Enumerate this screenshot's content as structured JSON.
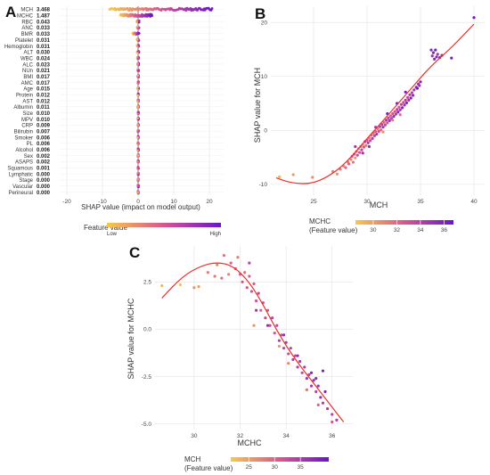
{
  "colors": {
    "low": "#f6c94a",
    "mid": "#d9568f",
    "high": "#6a16c8",
    "grid": "#e3e3e3",
    "fit_line": "#e8312f",
    "axis_text": "#333333"
  },
  "chart_data": [
    {
      "panel": "A",
      "type": "scatter",
      "subtype": "shap-beeswarm",
      "xlabel": "SHAP value (impact on model output)",
      "xlim": [
        -22,
        24
      ],
      "xticks": [
        -20,
        -10,
        0,
        10,
        20
      ],
      "grid": true,
      "features": [
        "MCH",
        "MCHC",
        "RBC",
        "ANC",
        "BMR",
        "Platelet",
        "Hemoglobin",
        "ALT",
        "WBC",
        "ALC",
        "NUn",
        "BMI",
        "AMC",
        "Age",
        "Protein",
        "AST",
        "Albumin",
        "Size",
        "MPV",
        "CRP",
        "Bilirubin",
        "Smoker",
        "PL",
        "Alcohol",
        "Sex",
        "ASAPS",
        "Squamous",
        "Lymphatic",
        "Stage",
        "Vascular",
        "Perineural"
      ],
      "mean_abs_shap": [
        "3.468",
        "1.487",
        "0.043",
        "0.033",
        "0.033",
        "0.031",
        "0.031",
        "0.030",
        "0.024",
        "0.023",
        "0.021",
        "0.017",
        "0.017",
        "0.015",
        "0.012",
        "0.012",
        "0.011",
        "0.010",
        "0.010",
        "0.009",
        "0.007",
        "0.006",
        "0.006",
        "0.006",
        "0.002",
        "0.002",
        "0.001",
        "0.000",
        "0.000",
        "0.000",
        "0.000"
      ],
      "spread": [
        {
          "feature": "MCH",
          "min": -8,
          "max": 21
        },
        {
          "feature": "MCHC",
          "min": -5,
          "max": 4
        },
        {
          "feature": "BMR",
          "min": -1.5,
          "max": 0.4
        }
      ],
      "legend": {
        "title": "Feature value",
        "low_label": "Low",
        "high_label": "High"
      }
    },
    {
      "panel": "B",
      "type": "scatter",
      "xlabel": "MCH",
      "ylabel": "SHAP value for MCH",
      "xlim": [
        21,
        41
      ],
      "ylim": [
        -12,
        23
      ],
      "xticks": [
        25,
        30,
        35,
        40
      ],
      "yticks": [
        -10,
        0,
        10,
        20
      ],
      "grid": true,
      "fit": "loess",
      "fit_points": [
        [
          21.5,
          -8.8
        ],
        [
          23,
          -9.8
        ],
        [
          25,
          -9.9
        ],
        [
          27,
          -7.8
        ],
        [
          28.5,
          -5
        ],
        [
          30,
          -1.5
        ],
        [
          31.5,
          1.8
        ],
        [
          33,
          5.2
        ],
        [
          34.5,
          8.6
        ],
        [
          36,
          12
        ],
        [
          38,
          15.5
        ],
        [
          40,
          19.7
        ]
      ],
      "color_by": {
        "title": "MCHC",
        "subtitle": "(Feature value)",
        "ticks": [
          30,
          32,
          34,
          36
        ],
        "range": [
          28.5,
          36.8
        ]
      },
      "points": [
        [
          21.8,
          -8.6,
          29.1
        ],
        [
          23.1,
          -8.2,
          30.2
        ],
        [
          24.9,
          -8.7,
          30.6
        ],
        [
          26.8,
          -7.6,
          31.0
        ],
        [
          27.2,
          -8.1,
          30.3
        ],
        [
          27.5,
          -7.2,
          31.4
        ],
        [
          27.8,
          -6.6,
          30.8
        ],
        [
          28.0,
          -6.9,
          32.1
        ],
        [
          28.2,
          -5.8,
          31.2
        ],
        [
          28.3,
          -6.2,
          32.4
        ],
        [
          28.5,
          -5.4,
          30.9
        ],
        [
          28.6,
          -4.8,
          32.7
        ],
        [
          28.7,
          -5.9,
          31.6
        ],
        [
          28.8,
          -4.4,
          33.0
        ],
        [
          28.9,
          -5.1,
          30.4
        ],
        [
          29.0,
          -3.9,
          32.2
        ],
        [
          29.1,
          -4.6,
          33.4
        ],
        [
          29.2,
          -3.4,
          31.0
        ],
        [
          29.3,
          -4.1,
          32.9
        ],
        [
          29.4,
          -3.0,
          31.8
        ],
        [
          29.5,
          -3.6,
          33.6
        ],
        [
          29.6,
          -2.6,
          30.6
        ],
        [
          29.7,
          -3.1,
          32.5
        ],
        [
          29.8,
          -2.1,
          33.9
        ],
        [
          29.9,
          -2.8,
          31.4
        ],
        [
          30.0,
          -1.8,
          32.8
        ],
        [
          30.1,
          -2.3,
          34.2
        ],
        [
          30.2,
          -1.4,
          31.2
        ],
        [
          30.3,
          -1.9,
          33.3
        ],
        [
          30.4,
          -0.9,
          32.1
        ],
        [
          30.5,
          -1.5,
          34.5
        ],
        [
          30.6,
          -0.5,
          31.7
        ],
        [
          30.7,
          -1.0,
          33.6
        ],
        [
          30.8,
          -0.2,
          32.4
        ],
        [
          30.9,
          -0.7,
          34.8
        ],
        [
          31.0,
          0.3,
          31.3
        ],
        [
          31.1,
          -0.2,
          33.2
        ],
        [
          31.2,
          0.7,
          34.0
        ],
        [
          31.3,
          0.1,
          32.0
        ],
        [
          31.4,
          1.1,
          33.8
        ],
        [
          31.5,
          0.6,
          35.0
        ],
        [
          31.6,
          1.5,
          31.9
        ],
        [
          31.7,
          1.0,
          33.4
        ],
        [
          31.8,
          1.9,
          34.6
        ],
        [
          31.9,
          1.4,
          32.6
        ],
        [
          32.0,
          2.3,
          33.9
        ],
        [
          32.1,
          1.8,
          35.2
        ],
        [
          32.2,
          2.7,
          32.3
        ],
        [
          32.3,
          2.2,
          34.1
        ],
        [
          32.4,
          3.1,
          33.0
        ],
        [
          32.5,
          2.6,
          35.4
        ],
        [
          32.6,
          3.5,
          32.7
        ],
        [
          32.7,
          3.0,
          34.4
        ],
        [
          32.8,
          3.9,
          33.5
        ],
        [
          32.9,
          3.4,
          35.6
        ],
        [
          33.0,
          4.3,
          32.9
        ],
        [
          33.1,
          3.8,
          34.7
        ],
        [
          33.2,
          4.8,
          33.7
        ],
        [
          33.3,
          4.2,
          35.8
        ],
        [
          33.4,
          5.2,
          33.2
        ],
        [
          33.5,
          4.7,
          35.0
        ],
        [
          33.6,
          5.6,
          34.1
        ],
        [
          33.7,
          5.1,
          36.0
        ],
        [
          33.8,
          6.1,
          33.4
        ],
        [
          33.9,
          5.6,
          35.3
        ],
        [
          34.0,
          6.6,
          34.3
        ],
        [
          34.1,
          6.0,
          36.2
        ],
        [
          34.2,
          7.0,
          33.8
        ],
        [
          34.3,
          6.5,
          35.5
        ],
        [
          34.4,
          7.5,
          34.6
        ],
        [
          34.6,
          8.0,
          35.7
        ],
        [
          34.8,
          8.6,
          34.9
        ],
        [
          35.0,
          9.0,
          36.0
        ],
        [
          34.7,
          7.8,
          36.3
        ],
        [
          34.9,
          8.3,
          35.1
        ],
        [
          30.8,
          0.6,
          34.6
        ],
        [
          31.5,
          -0.3,
          30.5
        ],
        [
          32.4,
          1.9,
          31.3
        ],
        [
          33.1,
          2.9,
          31.8
        ],
        [
          29.6,
          -4.2,
          35.0
        ],
        [
          30.2,
          -3.0,
          35.2
        ],
        [
          28.9,
          -3.0,
          34.7
        ],
        [
          31.9,
          3.1,
          36.1
        ],
        [
          32.8,
          5.0,
          36.4
        ],
        [
          33.6,
          7.1,
          36.5
        ],
        [
          36.0,
          14.9,
          35.6
        ],
        [
          36.1,
          13.8,
          34.9
        ],
        [
          36.2,
          14.4,
          36.1
        ],
        [
          36.3,
          13.2,
          35.3
        ],
        [
          36.4,
          14.9,
          36.4
        ],
        [
          36.5,
          13.6,
          35.8
        ],
        [
          36.6,
          14.1,
          34.7
        ],
        [
          36.8,
          13.5,
          36.2
        ],
        [
          37.0,
          13.9,
          35.1
        ],
        [
          37.9,
          13.4,
          36.3
        ],
        [
          40.0,
          20.9,
          36.6
        ]
      ]
    },
    {
      "panel": "C",
      "type": "scatter",
      "xlabel": "MCHC",
      "ylabel": "SHAP value for MCHC",
      "xlim": [
        28.3,
        36.9
      ],
      "ylim": [
        -5.3,
        4.4
      ],
      "xticks": [
        30,
        32,
        34,
        36
      ],
      "yticks": [
        -5.0,
        -2.5,
        0.0,
        2.5
      ],
      "ytick_labels": [
        "-5.0",
        "-2.5",
        "0.0",
        "2.5"
      ],
      "grid": true,
      "fit": "loess",
      "fit_points": [
        [
          28.6,
          1.65
        ],
        [
          29.5,
          2.8
        ],
        [
          30.3,
          3.35
        ],
        [
          31.0,
          3.55
        ],
        [
          31.7,
          3.35
        ],
        [
          32.4,
          2.5
        ],
        [
          33.0,
          1.3
        ],
        [
          33.7,
          -0.3
        ],
        [
          34.4,
          -1.6
        ],
        [
          35.1,
          -2.7
        ],
        [
          35.8,
          -3.8
        ],
        [
          36.5,
          -4.9
        ]
      ],
      "color_by": {
        "title": "MCH",
        "subtitle": "(Feature value)",
        "ticks": [
          25,
          30,
          35
        ],
        "range": [
          21.5,
          40.5
        ]
      },
      "points": [
        [
          28.6,
          2.3,
          23.0
        ],
        [
          29.4,
          2.35,
          22.0
        ],
        [
          30.0,
          2.2,
          26.0
        ],
        [
          30.2,
          2.25,
          25.0
        ],
        [
          30.6,
          3.0,
          27.5
        ],
        [
          30.9,
          2.8,
          28.0
        ],
        [
          31.0,
          3.4,
          26.5
        ],
        [
          31.2,
          2.7,
          29.0
        ],
        [
          31.3,
          3.9,
          28.5
        ],
        [
          31.5,
          2.9,
          27.0
        ],
        [
          31.6,
          3.5,
          30.0
        ],
        [
          31.8,
          3.2,
          29.5
        ],
        [
          31.9,
          3.8,
          28.0
        ],
        [
          32.0,
          2.9,
          30.5
        ],
        [
          32.1,
          2.5,
          31.0
        ],
        [
          32.2,
          3.0,
          29.0
        ],
        [
          32.3,
          2.2,
          31.5
        ],
        [
          32.4,
          2.8,
          30.0
        ],
        [
          32.5,
          2.0,
          32.0
        ],
        [
          32.6,
          2.4,
          30.8
        ],
        [
          32.7,
          1.5,
          31.8
        ],
        [
          32.8,
          1.9,
          33.0
        ],
        [
          32.9,
          1.0,
          30.4
        ],
        [
          33.0,
          1.4,
          32.2
        ],
        [
          33.1,
          0.6,
          33.4
        ],
        [
          33.2,
          1.0,
          31.2
        ],
        [
          33.3,
          0.2,
          32.8
        ],
        [
          33.4,
          0.6,
          34.0
        ],
        [
          33.5,
          -0.2,
          31.6
        ],
        [
          33.6,
          0.2,
          33.2
        ],
        [
          33.7,
          -0.6,
          34.4
        ],
        [
          33.8,
          -0.3,
          32.0
        ],
        [
          33.9,
          -1.0,
          33.6
        ],
        [
          34.0,
          -0.7,
          34.8
        ],
        [
          34.1,
          -1.3,
          32.4
        ],
        [
          34.2,
          -1.0,
          34.0
        ],
        [
          34.3,
          -1.6,
          35.2
        ],
        [
          34.4,
          -1.4,
          32.8
        ],
        [
          34.5,
          -2.0,
          34.4
        ],
        [
          34.6,
          -1.7,
          35.6
        ],
        [
          34.7,
          -2.3,
          33.2
        ],
        [
          34.8,
          -2.0,
          34.8
        ],
        [
          34.9,
          -2.6,
          36.0
        ],
        [
          35.0,
          -2.4,
          33.6
        ],
        [
          35.1,
          -3.0,
          35.2
        ],
        [
          35.2,
          -2.7,
          36.4
        ],
        [
          35.3,
          -3.3,
          34.0
        ],
        [
          35.4,
          -3.0,
          35.6
        ],
        [
          35.5,
          -3.6,
          36.8
        ],
        [
          35.6,
          -3.9,
          34.4
        ],
        [
          35.8,
          -4.2,
          35.0
        ],
        [
          36.0,
          -4.5,
          33.8
        ],
        [
          36.2,
          -4.8,
          34.6
        ],
        [
          35.3,
          -2.6,
          37.5
        ],
        [
          35.1,
          -2.3,
          38.0
        ],
        [
          34.5,
          -1.4,
          37.2
        ],
        [
          33.9,
          -0.3,
          36.8
        ],
        [
          33.2,
          0.2,
          36.5
        ],
        [
          32.7,
          1.0,
          35.8
        ],
        [
          35.6,
          -2.2,
          39.0
        ],
        [
          35.7,
          -3.3,
          38.2
        ],
        [
          32.4,
          3.5,
          34.0
        ],
        [
          33.7,
          -0.9,
          25.5
        ],
        [
          34.1,
          -1.8,
          27.0
        ],
        [
          32.6,
          0.2,
          26.0
        ],
        [
          34.9,
          -3.2,
          29.0
        ],
        [
          35.4,
          -4.0,
          30.0
        ],
        [
          36.0,
          -4.9,
          31.5
        ]
      ]
    }
  ],
  "panels": {
    "A": {
      "letter": "A"
    },
    "B": {
      "letter": "B"
    },
    "C": {
      "letter": "C"
    }
  }
}
